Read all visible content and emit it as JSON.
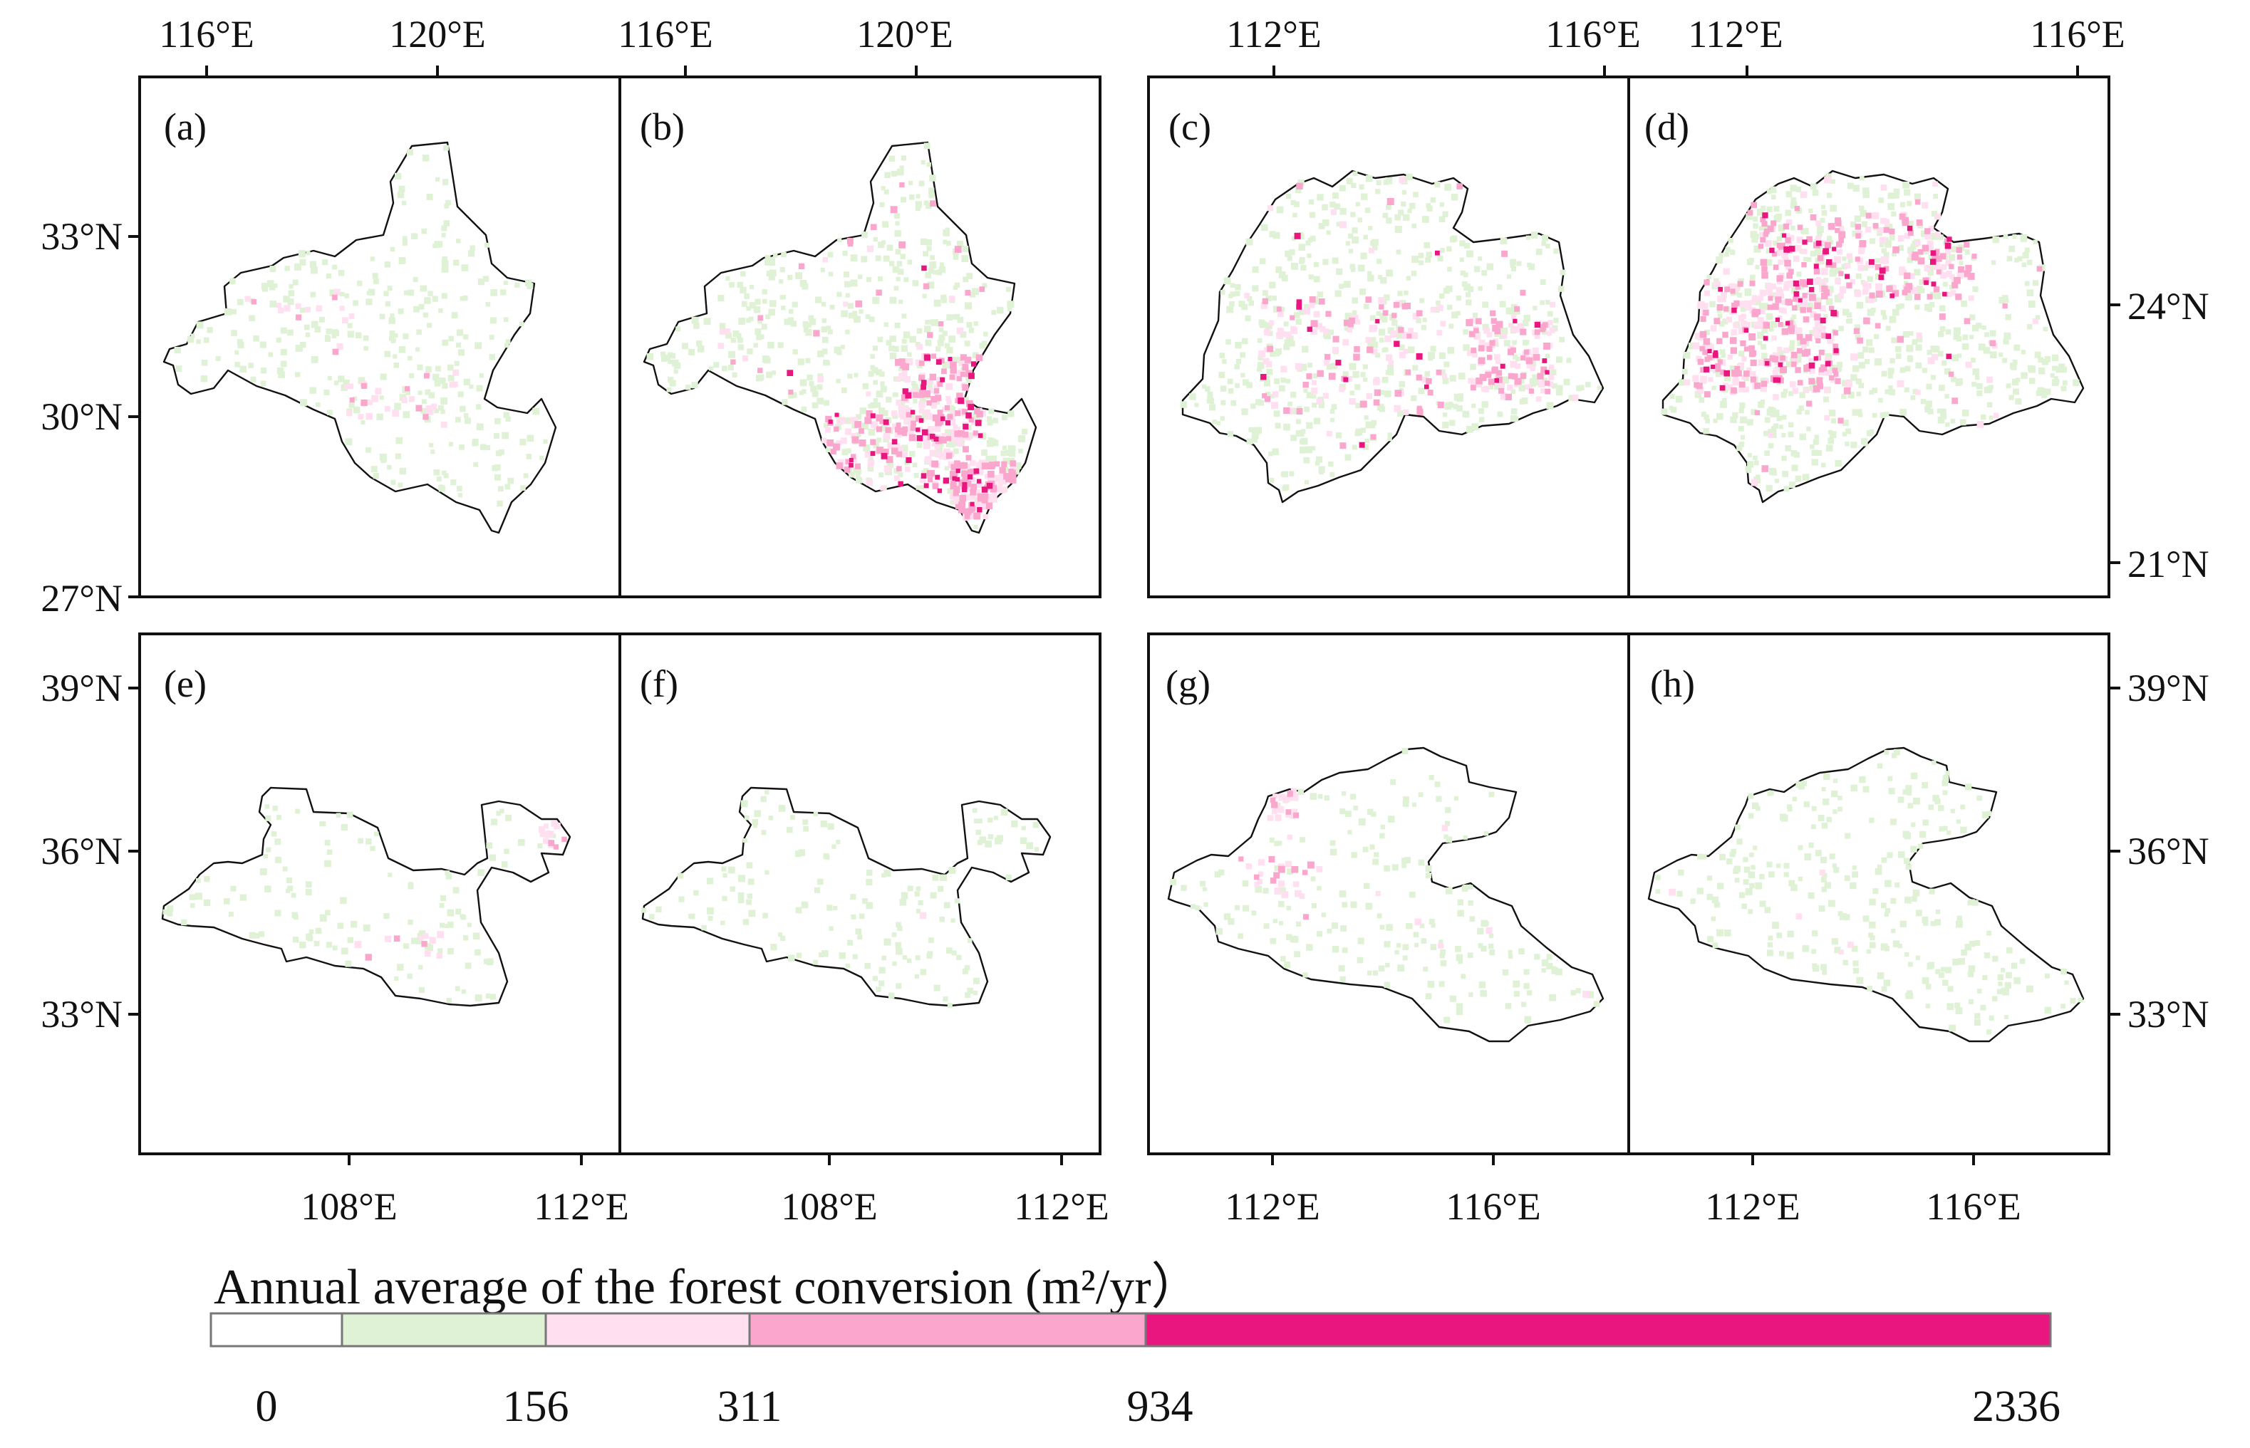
{
  "panels": [
    {
      "label": "(a)"
    },
    {
      "label": "(b)"
    },
    {
      "label": "(c)"
    },
    {
      "label": "(d)"
    },
    {
      "label": "(e)"
    },
    {
      "label": "(f)"
    },
    {
      "label": "(g)"
    },
    {
      "label": "(h)"
    }
  ],
  "axes": {
    "group1_top_lon": [
      "116°E",
      "120°E",
      "116°E",
      "120°E"
    ],
    "group1_left_lat": [
      "33°N",
      "30°N",
      "27°N"
    ],
    "group2_top_lon": [
      "112°E",
      "116°E",
      "112°E",
      "116°E"
    ],
    "group2_right_lat": [
      "24°N",
      "21°N"
    ],
    "group3_left_lat": [
      "39°N",
      "36°N",
      "33°N"
    ],
    "group3_bottom_lon": [
      "108°E",
      "112°E",
      "108°E",
      "112°E"
    ],
    "group4_right_lat": [
      "39°N",
      "36°N",
      "33°N"
    ],
    "group4_bottom_lon": [
      "112°E",
      "116°E",
      "112°E",
      "116°E"
    ]
  },
  "legend": {
    "title": "Annual average of the forest conversion (m²/yr）",
    "values": [
      "0",
      "156",
      "311",
      "934",
      "2336"
    ],
    "colors": [
      "#ffffff",
      "#dff2d5",
      "#ffdff0",
      "#fba6cc",
      "#e8167e"
    ]
  },
  "conversion_levels": {
    "a": {
      "green": 0.55,
      "light_pink": 0.03,
      "pink": 0.01,
      "magenta": 0.0
    },
    "b": {
      "green": 0.9,
      "light_pink": 0.25,
      "pink": 0.2,
      "magenta": 0.06
    },
    "c": {
      "green": 0.8,
      "light_pink": 0.15,
      "pink": 0.1,
      "magenta": 0.02
    },
    "d": {
      "green": 0.95,
      "light_pink": 0.3,
      "pink": 0.25,
      "magenta": 0.06
    },
    "e": {
      "green": 0.4,
      "light_pink": 0.03,
      "pink": 0.01,
      "magenta": 0.0
    },
    "f": {
      "green": 0.5,
      "light_pink": 0.01,
      "pink": 0.0,
      "magenta": 0.0
    },
    "g": {
      "green": 0.4,
      "light_pink": 0.05,
      "pink": 0.02,
      "magenta": 0.0
    },
    "h": {
      "green": 0.55,
      "light_pink": 0.01,
      "pink": 0.0,
      "magenta": 0.0
    }
  }
}
